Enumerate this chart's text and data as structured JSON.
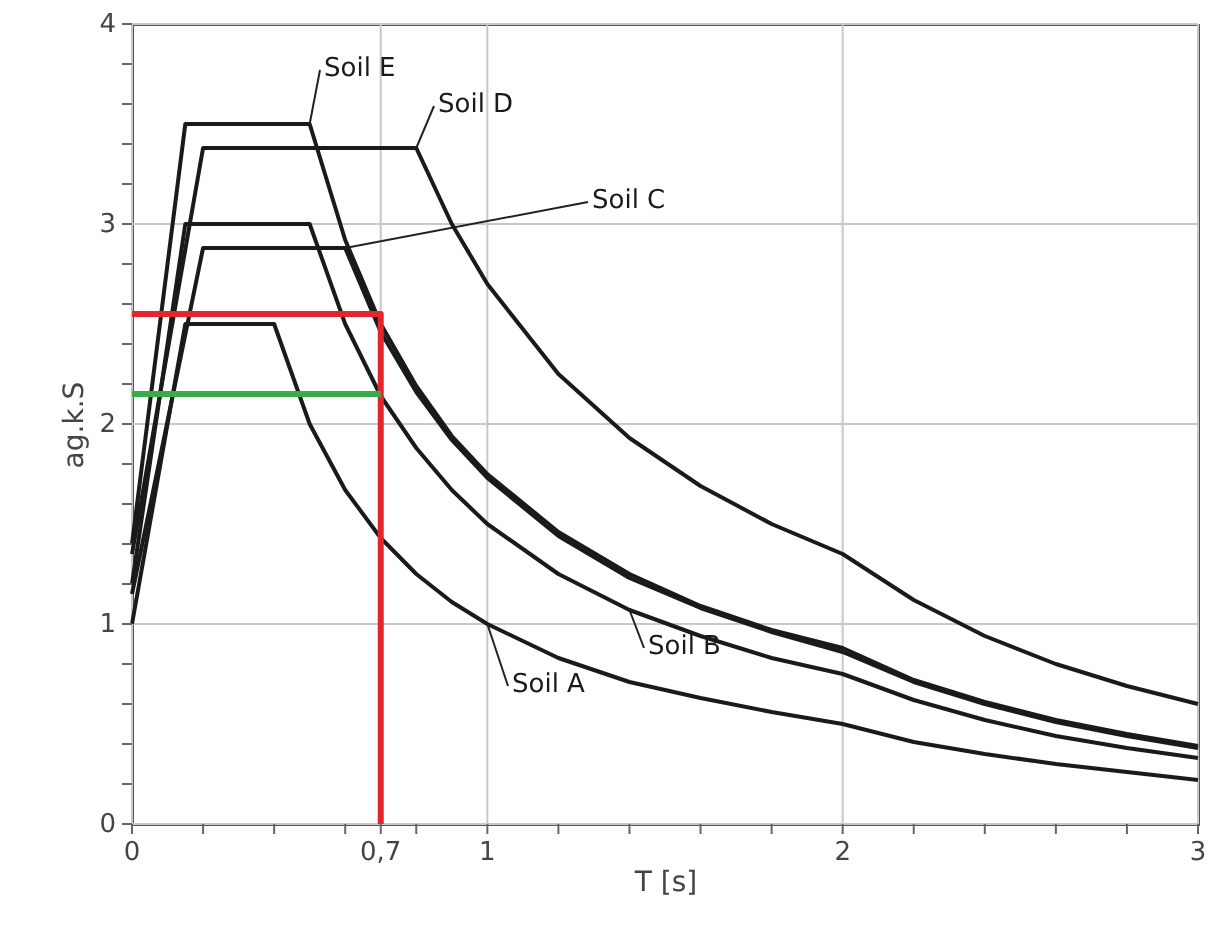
{
  "chart_data": {
    "type": "line",
    "xlabel": "T [s]",
    "ylabel": "ag.k.S",
    "xlim": [
      0,
      3
    ],
    "ylim": [
      0,
      4
    ],
    "xticks": [
      0,
      {
        "value": 0.2,
        "label": null
      },
      {
        "value": 0.4,
        "label": null
      },
      {
        "value": 0.6,
        "label": null
      },
      {
        "value": 0.7,
        "label": "0,7"
      },
      {
        "value": 0.8,
        "label": null
      },
      1,
      {
        "value": 1.2,
        "label": null
      },
      {
        "value": 1.4,
        "label": null
      },
      {
        "value": 1.6,
        "label": null
      },
      {
        "value": 1.8,
        "label": null
      },
      2,
      {
        "value": 2.2,
        "label": null
      },
      {
        "value": 2.4,
        "label": null
      },
      {
        "value": 2.6,
        "label": null
      },
      {
        "value": 2.8,
        "label": null
      },
      3
    ],
    "yticks": [
      0,
      {
        "value": 0.2,
        "label": null
      },
      {
        "value": 0.4,
        "label": null
      },
      {
        "value": 0.6,
        "label": null
      },
      {
        "value": 0.8,
        "label": null
      },
      1,
      {
        "value": 1.2,
        "label": null
      },
      {
        "value": 1.4,
        "label": null
      },
      {
        "value": 1.6,
        "label": null
      },
      {
        "value": 1.8,
        "label": null
      },
      2,
      {
        "value": 2.2,
        "label": null
      },
      {
        "value": 2.4,
        "label": null
      },
      {
        "value": 2.6,
        "label": null
      },
      {
        "value": 2.8,
        "label": null
      },
      3,
      {
        "value": 3.2,
        "label": null
      },
      {
        "value": 3.4,
        "label": null
      },
      {
        "value": 3.6,
        "label": null
      },
      {
        "value": 3.8,
        "label": null
      },
      4
    ],
    "grid": true,
    "series": [
      {
        "name": "Soil A",
        "color": "#1a1a1a",
        "x": [
          0,
          0.15,
          0.4,
          0.5,
          0.6,
          0.7,
          0.8,
          0.9,
          1.0,
          1.2,
          1.4,
          1.6,
          1.8,
          2.0,
          2.2,
          2.4,
          2.6,
          2.8,
          3.0
        ],
        "values": [
          1,
          2.5,
          2.5,
          2,
          1.67,
          1.43,
          1.25,
          1.11,
          1,
          0.83,
          0.71,
          0.63,
          0.56,
          0.5,
          0.41,
          0.35,
          0.3,
          0.26,
          0.22
        ]
      },
      {
        "name": "Soil B",
        "color": "#1a1a1a",
        "x": [
          0,
          0.15,
          0.5,
          0.6,
          0.7,
          0.8,
          0.9,
          1.0,
          1.2,
          1.4,
          1.6,
          1.8,
          2.0,
          2.2,
          2.4,
          2.6,
          2.8,
          3.0
        ],
        "values": [
          1.2,
          3,
          3,
          2.5,
          2.14,
          1.88,
          1.67,
          1.5,
          1.25,
          1.07,
          0.94,
          0.83,
          0.75,
          0.62,
          0.52,
          0.44,
          0.38,
          0.33
        ]
      },
      {
        "name": "Soil C",
        "color": "#1a1a1a",
        "x": [
          0,
          0.2,
          0.6,
          0.7,
          0.8,
          0.9,
          1.0,
          1.2,
          1.4,
          1.6,
          1.8,
          2.0,
          2.2,
          2.4,
          2.6,
          2.8,
          3.0
        ],
        "values": [
          1.15,
          2.88,
          2.88,
          2.46,
          2.16,
          1.92,
          1.73,
          1.44,
          1.23,
          1.08,
          0.96,
          0.86,
          0.71,
          0.6,
          0.51,
          0.44,
          0.38
        ]
      },
      {
        "name": "Soil D",
        "color": "#1a1a1a",
        "x": [
          0,
          0.2,
          0.8,
          0.9,
          1.0,
          1.2,
          1.4,
          1.6,
          1.8,
          2.0,
          2.2,
          2.4,
          2.6,
          2.8,
          3.0
        ],
        "values": [
          1.35,
          3.38,
          3.38,
          3,
          2.7,
          2.25,
          1.93,
          1.69,
          1.5,
          1.35,
          1.12,
          0.94,
          0.8,
          0.69,
          0.6
        ]
      },
      {
        "name": "Soil E",
        "color": "#1a1a1a",
        "x": [
          0,
          0.15,
          0.5,
          0.6,
          0.7,
          0.8,
          0.9,
          1.0,
          1.2,
          1.4,
          1.6,
          1.8,
          2.0,
          2.2,
          2.4,
          2.6,
          2.8,
          3.0
        ],
        "values": [
          1.4,
          3.5,
          3.5,
          2.92,
          2.5,
          2.19,
          1.94,
          1.75,
          1.46,
          1.25,
          1.09,
          0.97,
          0.88,
          0.72,
          0.61,
          0.52,
          0.45,
          0.39
        ]
      },
      {
        "color": "#e3262e",
        "x": [
          0,
          0.7,
          0.7
        ],
        "values": [
          2.55,
          2.55,
          0
        ]
      },
      {
        "color": "#3aaa4a",
        "x": [
          0,
          0.7
        ],
        "values": [
          2.15,
          2.15
        ]
      }
    ]
  }
}
